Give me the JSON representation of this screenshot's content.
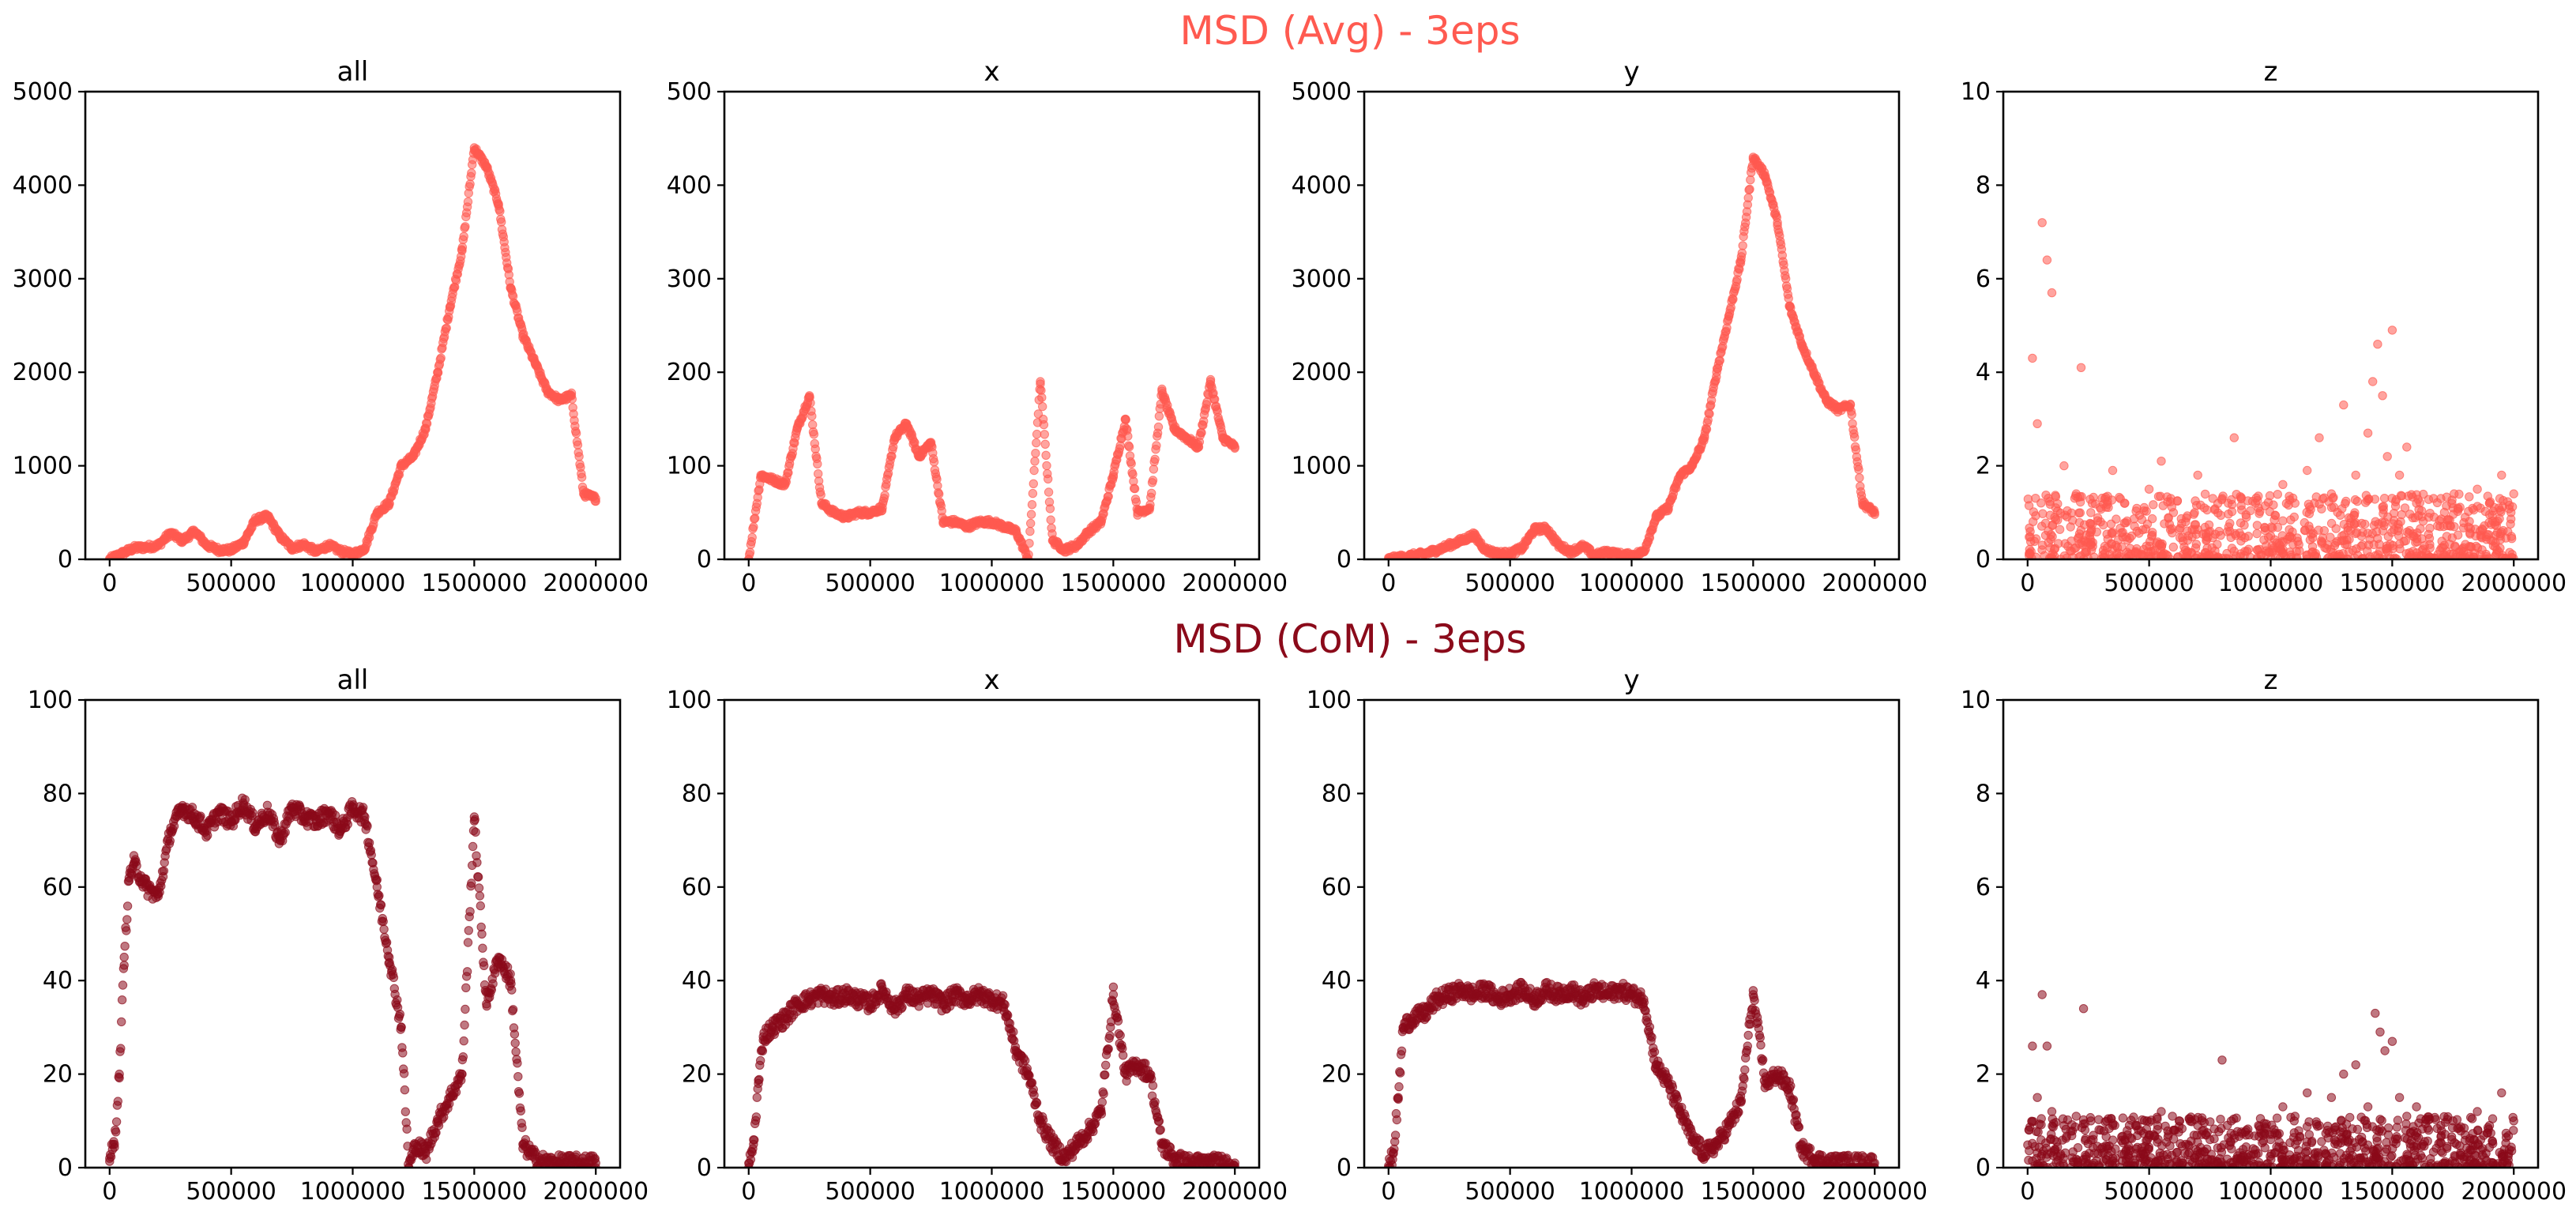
{
  "figure": {
    "rows": [
      {
        "title": "MSD (Avg) - 3eps",
        "color": "#ff5a50"
      },
      {
        "title": "MSD (CoM) - 3eps",
        "color": "#8b0a1a"
      }
    ]
  },
  "chart_data": [
    {
      "type": "scatter",
      "row": 0,
      "title": "all",
      "xlabel": "",
      "ylabel": "",
      "xlim": [
        -100000,
        2100000
      ],
      "ylim": [
        0,
        5000
      ],
      "xticks": [
        0,
        500000,
        1000000,
        1500000,
        2000000
      ],
      "yticks": [
        0,
        1000,
        2000,
        3000,
        4000,
        5000
      ],
      "color": "#ff5a50",
      "grid": false,
      "series": [
        {
          "x": [
            0,
            50000,
            100000,
            150000,
            200000,
            250000,
            300000,
            350000,
            400000,
            450000,
            500000,
            550000,
            600000,
            650000,
            700000,
            750000,
            800000,
            850000,
            900000,
            950000,
            1000000,
            1050000,
            1100000,
            1150000,
            1200000,
            1250000,
            1300000,
            1350000,
            1400000,
            1450000,
            1500000,
            1550000,
            1600000,
            1650000,
            1700000,
            1750000,
            1800000,
            1850000,
            1900000,
            1950000,
            2000000
          ],
          "y": [
            0,
            60,
            120,
            130,
            150,
            280,
            200,
            300,
            150,
            100,
            100,
            180,
            420,
            460,
            250,
            120,
            160,
            80,
            150,
            90,
            50,
            120,
            500,
            600,
            1000,
            1100,
            1400,
            2000,
            2700,
            3300,
            4400,
            4200,
            3800,
            2900,
            2400,
            2100,
            1800,
            1700,
            1750,
            700,
            650
          ]
        }
      ]
    },
    {
      "type": "scatter",
      "row": 0,
      "title": "x",
      "xlabel": "",
      "ylabel": "",
      "xlim": [
        -100000,
        2100000
      ],
      "ylim": [
        0,
        500
      ],
      "xticks": [
        0,
        500000,
        1000000,
        1500000,
        2000000
      ],
      "yticks": [
        0,
        100,
        200,
        300,
        400,
        500
      ],
      "color": "#ff5a50",
      "grid": false,
      "series": [
        {
          "x": [
            0,
            50000,
            100000,
            150000,
            200000,
            250000,
            300000,
            350000,
            400000,
            450000,
            500000,
            550000,
            600000,
            650000,
            700000,
            750000,
            800000,
            850000,
            900000,
            950000,
            1000000,
            1050000,
            1100000,
            1150000,
            1200000,
            1250000,
            1300000,
            1350000,
            1400000,
            1450000,
            1500000,
            1550000,
            1600000,
            1650000,
            1700000,
            1750000,
            1800000,
            1850000,
            1900000,
            1950000,
            2000000
          ],
          "y": [
            0,
            90,
            85,
            80,
            140,
            175,
            60,
            50,
            45,
            50,
            50,
            55,
            130,
            145,
            110,
            125,
            40,
            40,
            35,
            40,
            40,
            35,
            30,
            0,
            190,
            20,
            10,
            15,
            30,
            40,
            90,
            150,
            50,
            55,
            180,
            140,
            130,
            120,
            190,
            130,
            120
          ]
        }
      ]
    },
    {
      "type": "scatter",
      "row": 0,
      "title": "y",
      "xlabel": "",
      "ylabel": "",
      "xlim": [
        -100000,
        2100000
      ],
      "ylim": [
        0,
        5000
      ],
      "xticks": [
        0,
        500000,
        1000000,
        1500000,
        2000000
      ],
      "yticks": [
        0,
        1000,
        2000,
        3000,
        4000,
        5000
      ],
      "color": "#ff5a50",
      "grid": false,
      "series": [
        {
          "x": [
            0,
            50000,
            100000,
            150000,
            200000,
            250000,
            300000,
            350000,
            400000,
            450000,
            500000,
            550000,
            600000,
            650000,
            700000,
            750000,
            800000,
            850000,
            900000,
            950000,
            1000000,
            1050000,
            1100000,
            1150000,
            1200000,
            1250000,
            1300000,
            1350000,
            1400000,
            1450000,
            1500000,
            1550000,
            1600000,
            1650000,
            1700000,
            1750000,
            1800000,
            1850000,
            1900000,
            1950000,
            2000000
          ],
          "y": [
            0,
            20,
            40,
            60,
            100,
            150,
            200,
            260,
            100,
            60,
            60,
            120,
            320,
            330,
            150,
            80,
            140,
            40,
            80,
            50,
            40,
            80,
            450,
            550,
            900,
            1000,
            1300,
            2000,
            2600,
            3200,
            4300,
            4100,
            3600,
            2700,
            2300,
            2000,
            1700,
            1600,
            1650,
            600,
            500
          ]
        }
      ]
    },
    {
      "type": "scatter",
      "row": 0,
      "title": "z",
      "xlabel": "",
      "ylabel": "",
      "xlim": [
        -100000,
        2100000
      ],
      "ylim": [
        0,
        10
      ],
      "xticks": [
        0,
        500000,
        1000000,
        1500000,
        2000000
      ],
      "yticks": [
        0,
        2,
        4,
        6,
        8,
        10
      ],
      "color": "#ff5a50",
      "grid": false,
      "series": [
        {
          "x": [
            20000,
            40000,
            60000,
            80000,
            100000,
            150000,
            200000,
            220000,
            260000,
            300000,
            350000,
            400000,
            450000,
            500000,
            550000,
            600000,
            650000,
            700000,
            750000,
            800000,
            850000,
            900000,
            950000,
            1000000,
            1050000,
            1100000,
            1150000,
            1200000,
            1250000,
            1300000,
            1350000,
            1400000,
            1420000,
            1440000,
            1460000,
            1480000,
            1500000,
            1530000,
            1560000,
            1600000,
            1650000,
            1700000,
            1750000,
            1800000,
            1850000,
            1900000,
            1950000,
            2000000
          ],
          "y": [
            4.3,
            2.9,
            7.2,
            6.4,
            5.7,
            2.0,
            1.4,
            4.1,
            1.0,
            0.8,
            1.9,
            1.2,
            0.6,
            1.5,
            2.1,
            1.0,
            0.8,
            1.8,
            0.6,
            1.3,
            2.6,
            0.9,
            1.1,
            0.5,
            1.6,
            1.2,
            1.9,
            2.6,
            1.4,
            3.3,
            1.8,
            2.7,
            3.8,
            4.6,
            3.5,
            2.2,
            4.9,
            1.8,
            2.4,
            1.2,
            0.9,
            1.3,
            1.1,
            0.9,
            1.5,
            1.2,
            1.8,
            1.4
          ]
        }
      ]
    },
    {
      "type": "scatter",
      "row": 1,
      "title": "all",
      "xlabel": "",
      "ylabel": "",
      "xlim": [
        -100000,
        2100000
      ],
      "ylim": [
        0,
        100
      ],
      "xticks": [
        0,
        500000,
        1000000,
        1500000,
        2000000
      ],
      "yticks": [
        0,
        20,
        40,
        60,
        80,
        100
      ],
      "color": "#8b0a1a",
      "grid": false,
      "series": [
        {
          "x": [
            0,
            20000,
            40000,
            60000,
            80000,
            100000,
            150000,
            200000,
            250000,
            300000,
            350000,
            400000,
            450000,
            500000,
            550000,
            600000,
            650000,
            700000,
            750000,
            800000,
            850000,
            900000,
            950000,
            1000000,
            1050000,
            1100000,
            1150000,
            1200000,
            1230000,
            1260000,
            1300000,
            1350000,
            1400000,
            1450000,
            1500000,
            1550000,
            1600000,
            1650000,
            1700000,
            1750000,
            1800000,
            1850000,
            1900000,
            1950000,
            2000000
          ],
          "y": [
            2,
            5,
            20,
            45,
            62,
            65,
            60,
            58,
            72,
            77,
            75,
            72,
            76,
            74,
            78,
            73,
            76,
            70,
            77,
            75,
            74,
            76,
            72,
            77,
            75,
            60,
            45,
            30,
            0,
            5,
            3,
            10,
            15,
            20,
            75,
            35,
            45,
            40,
            5,
            2,
            1,
            1,
            1,
            1,
            1
          ]
        }
      ]
    },
    {
      "type": "scatter",
      "row": 1,
      "title": "x",
      "xlabel": "",
      "ylabel": "",
      "xlim": [
        -100000,
        2100000
      ],
      "ylim": [
        0,
        100
      ],
      "xticks": [
        0,
        500000,
        1000000,
        1500000,
        2000000
      ],
      "yticks": [
        0,
        20,
        40,
        60,
        80,
        100
      ],
      "color": "#8b0a1a",
      "grid": false,
      "series": [
        {
          "x": [
            0,
            20000,
            40000,
            60000,
            100000,
            150000,
            200000,
            250000,
            300000,
            350000,
            400000,
            450000,
            500000,
            550000,
            600000,
            650000,
            700000,
            750000,
            800000,
            850000,
            900000,
            950000,
            1000000,
            1050000,
            1100000,
            1150000,
            1200000,
            1250000,
            1300000,
            1350000,
            1400000,
            1450000,
            1500000,
            1550000,
            1600000,
            1650000,
            1700000,
            1750000,
            1800000,
            1850000,
            1900000,
            1950000,
            2000000
          ],
          "y": [
            0,
            5,
            18,
            28,
            30,
            32,
            35,
            36,
            37,
            36,
            37,
            36,
            35,
            38,
            34,
            37,
            36,
            37,
            35,
            37,
            36,
            37,
            36,
            35,
            25,
            20,
            10,
            5,
            2,
            5,
            8,
            12,
            37,
            20,
            22,
            20,
            5,
            2,
            1,
            1,
            1,
            1,
            1
          ]
        }
      ]
    },
    {
      "type": "scatter",
      "row": 1,
      "title": "y",
      "xlabel": "",
      "ylabel": "",
      "xlim": [
        -100000,
        2100000
      ],
      "ylim": [
        0,
        100
      ],
      "xticks": [
        0,
        500000,
        1000000,
        1500000,
        2000000
      ],
      "yticks": [
        0,
        20,
        40,
        60,
        80,
        100
      ],
      "color": "#8b0a1a",
      "grid": false,
      "series": [
        {
          "x": [
            0,
            20000,
            40000,
            60000,
            100000,
            150000,
            200000,
            250000,
            300000,
            350000,
            400000,
            450000,
            500000,
            550000,
            600000,
            650000,
            700000,
            750000,
            800000,
            850000,
            900000,
            950000,
            1000000,
            1050000,
            1100000,
            1150000,
            1200000,
            1250000,
            1300000,
            1350000,
            1400000,
            1450000,
            1500000,
            1550000,
            1600000,
            1650000,
            1700000,
            1750000,
            1800000,
            1850000,
            1900000,
            1950000,
            2000000
          ],
          "y": [
            0,
            3,
            15,
            30,
            32,
            33,
            36,
            37,
            38,
            37,
            38,
            36,
            37,
            38,
            36,
            38,
            37,
            38,
            36,
            38,
            37,
            38,
            37,
            36,
            22,
            18,
            12,
            6,
            3,
            5,
            9,
            14,
            37,
            18,
            20,
            17,
            4,
            2,
            1,
            1,
            1,
            1,
            1
          ]
        }
      ]
    },
    {
      "type": "scatter",
      "row": 1,
      "title": "z",
      "xlabel": "",
      "ylabel": "",
      "xlim": [
        -100000,
        2100000
      ],
      "ylim": [
        0,
        10
      ],
      "xticks": [
        0,
        500000,
        1000000,
        1500000,
        2000000
      ],
      "yticks": [
        0,
        2,
        4,
        6,
        8,
        10
      ],
      "color": "#8b0a1a",
      "grid": false,
      "series": [
        {
          "x": [
            20000,
            40000,
            60000,
            80000,
            100000,
            150000,
            200000,
            230000,
            260000,
            300000,
            350000,
            400000,
            450000,
            500000,
            550000,
            600000,
            650000,
            700000,
            750000,
            800000,
            850000,
            900000,
            950000,
            1000000,
            1050000,
            1100000,
            1150000,
            1200000,
            1250000,
            1300000,
            1350000,
            1400000,
            1430000,
            1450000,
            1470000,
            1500000,
            1530000,
            1560000,
            1600000,
            1650000,
            1700000,
            1750000,
            1800000,
            1850000,
            1900000,
            1950000,
            2000000
          ],
          "y": [
            2.6,
            1.5,
            3.7,
            2.6,
            1.2,
            0.9,
            1.1,
            3.4,
            1.0,
            0.8,
            0.9,
            0.6,
            0.9,
            0.7,
            1.2,
            0.8,
            0.5,
            0.9,
            0.6,
            2.3,
            0.7,
            0.8,
            0.9,
            0.6,
            1.3,
            1.1,
            1.6,
            0.9,
            1.5,
            2.0,
            2.2,
            1.3,
            3.3,
            2.9,
            2.5,
            2.7,
            1.5,
            1.1,
            1.3,
            0.8,
            0.9,
            1.0,
            0.7,
            1.2,
            0.9,
            1.6,
            1.0
          ]
        }
      ]
    }
  ]
}
